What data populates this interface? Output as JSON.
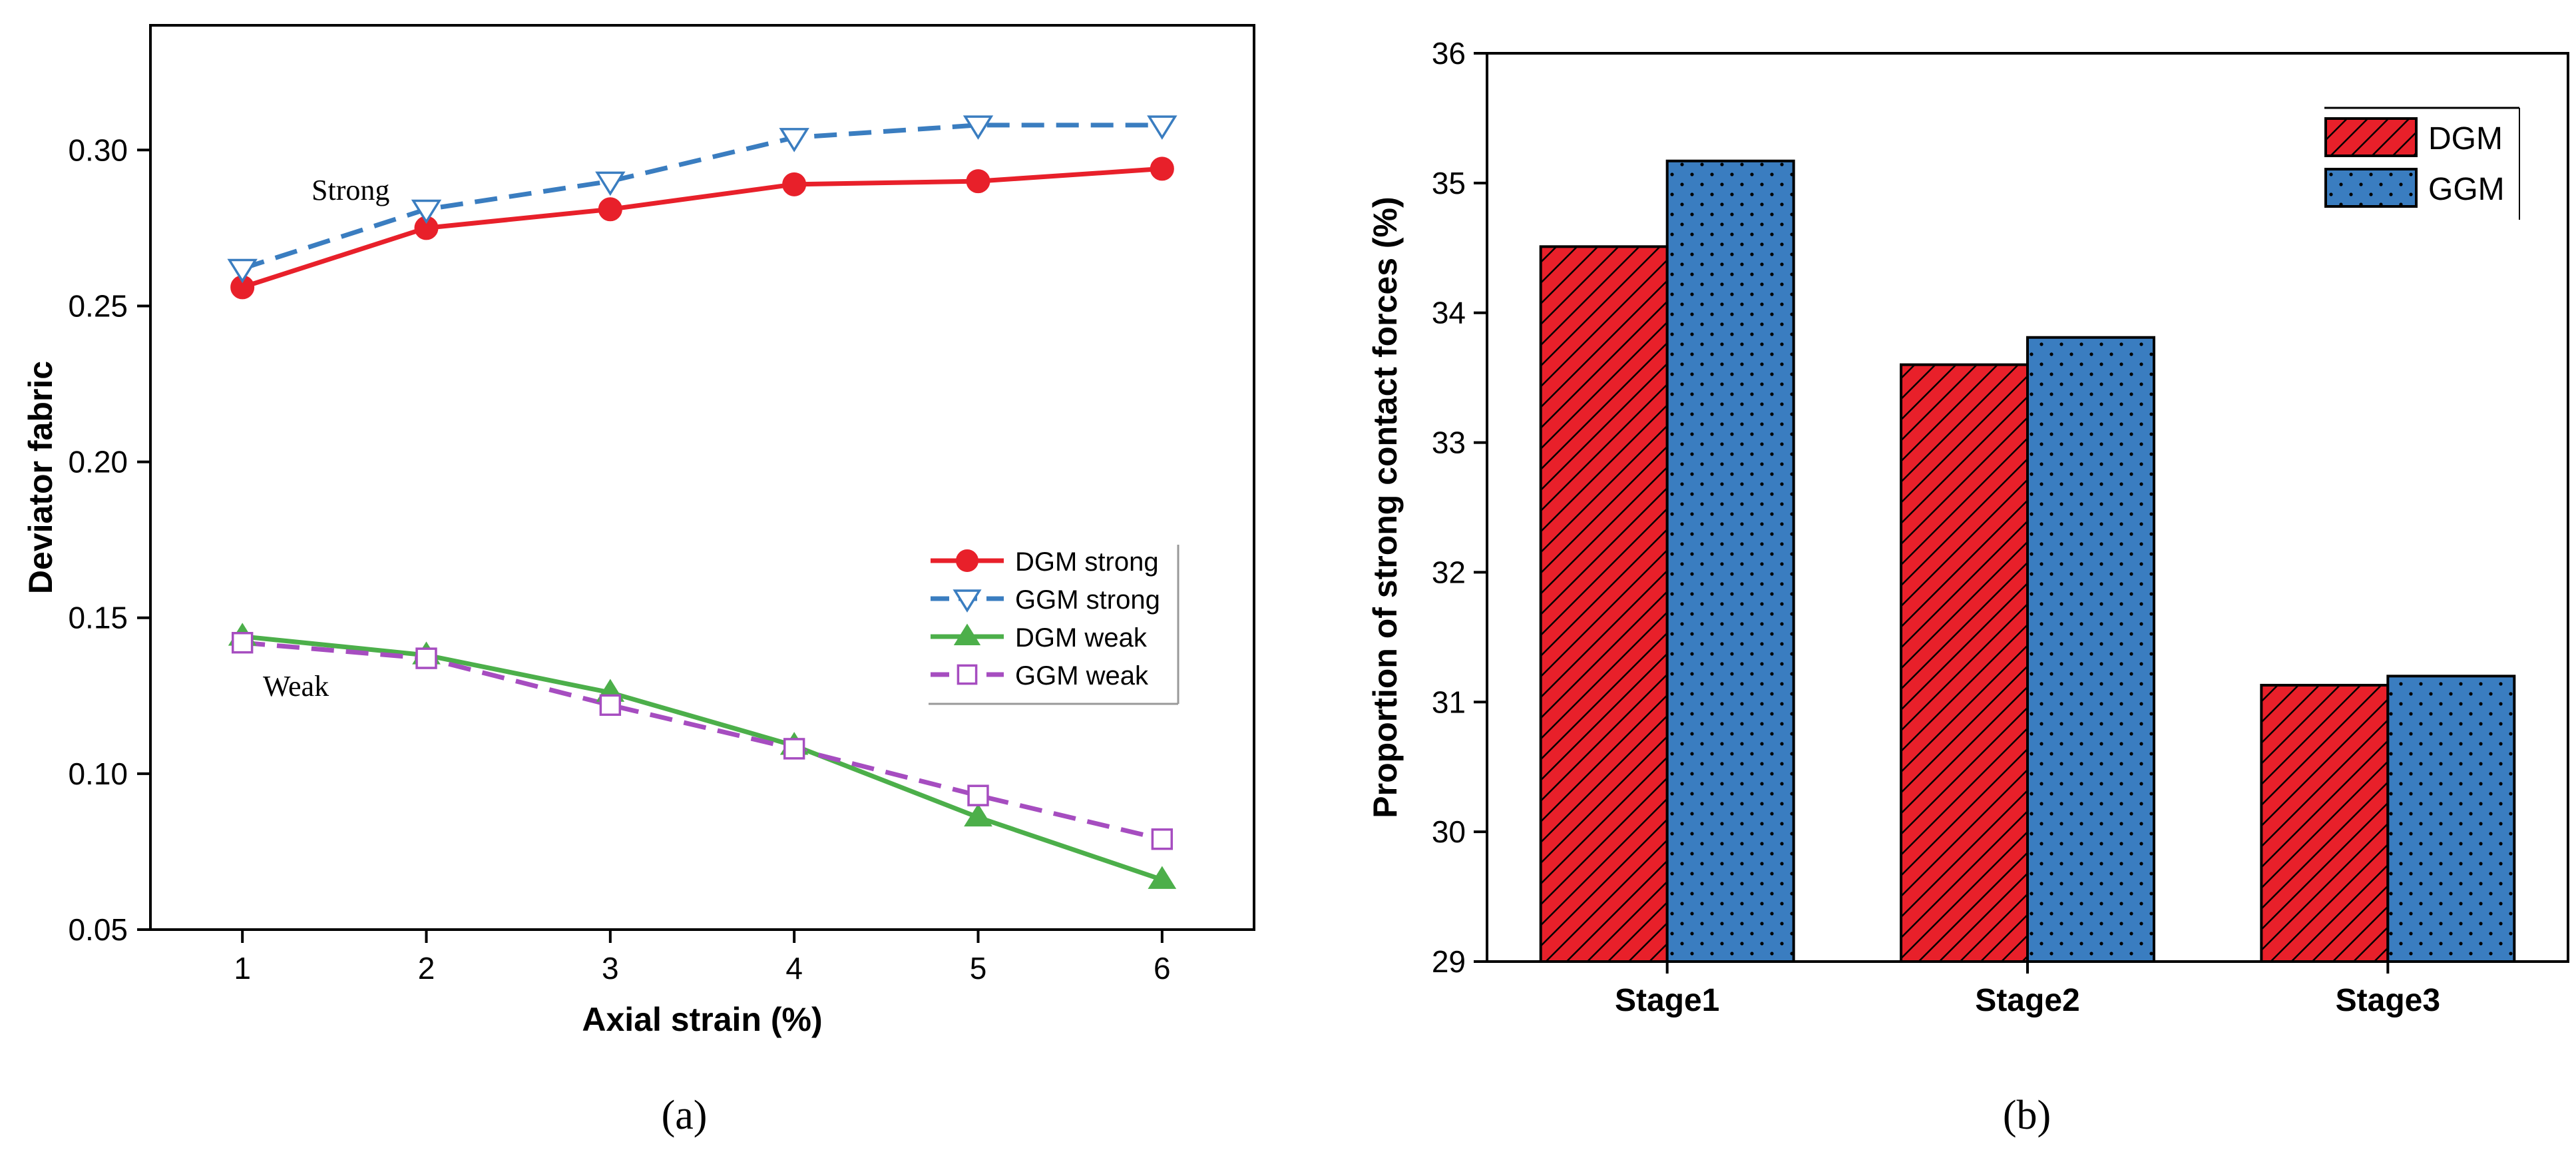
{
  "colors": {
    "dgm_strong": "#e8202a",
    "ggm_strong": "#3a7dc0",
    "dgm_weak": "#4caf4a",
    "ggm_weak": "#a64dc0",
    "bar_dgm": "#e8202a",
    "bar_ggm": "#3a7dc0",
    "axis": "#000000"
  },
  "chart_data": [
    {
      "type": "line",
      "panel_label": "(a)",
      "title": "",
      "xlabel": "Axial strain (%)",
      "ylabel": "Deviator fabric",
      "xlim": [
        0.5,
        6.5
      ],
      "ylim": [
        0.05,
        0.34
      ],
      "x": [
        1,
        2,
        3,
        4,
        5,
        6
      ],
      "xticks": [
        "1",
        "2",
        "3",
        "4",
        "5",
        "6"
      ],
      "yticks": [
        "0.05",
        "0.10",
        "0.15",
        "0.20",
        "0.25",
        "0.30"
      ],
      "series": [
        {
          "name": "DGM strong",
          "values": [
            0.256,
            0.275,
            0.281,
            0.289,
            0.29,
            0.294
          ]
        },
        {
          "name": "GGM strong",
          "values": [
            0.262,
            0.281,
            0.29,
            0.304,
            0.308,
            0.308
          ]
        },
        {
          "name": "DGM weak",
          "values": [
            0.144,
            0.138,
            0.126,
            0.109,
            0.086,
            0.066
          ]
        },
        {
          "name": "GGM weak",
          "values": [
            0.142,
            0.137,
            0.122,
            0.108,
            0.093,
            0.079
          ]
        }
      ],
      "annotations": [
        "Strong",
        "Weak"
      ],
      "legend_position": "center-right"
    },
    {
      "type": "bar",
      "panel_label": "(b)",
      "title": "",
      "xlabel": "",
      "ylabel": "Proportion of strong contact forces (%)",
      "categories": [
        "Stage1",
        "Stage2",
        "Stage3"
      ],
      "ylim": [
        29,
        36
      ],
      "yticks": [
        "29",
        "30",
        "31",
        "32",
        "33",
        "34",
        "35",
        "36"
      ],
      "series": [
        {
          "name": "DGM",
          "values": [
            34.51,
            33.6,
            31.13
          ]
        },
        {
          "name": "GGM",
          "values": [
            35.17,
            33.81,
            31.2
          ]
        }
      ],
      "legend_position": "top-right"
    }
  ]
}
